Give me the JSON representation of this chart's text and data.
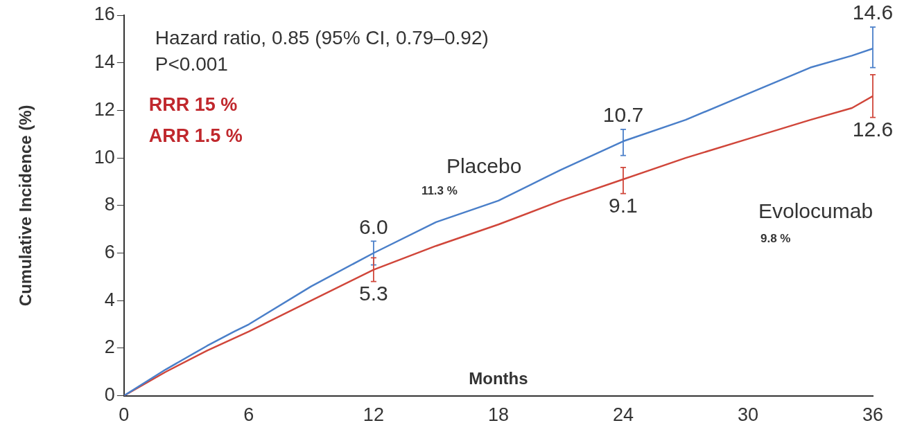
{
  "chart_data": {
    "type": "line",
    "xlabel": "Months",
    "ylabel": "Cumulative Incidence (%)",
    "xlim": [
      0,
      36
    ],
    "xticks": [
      0,
      6,
      12,
      18,
      24,
      30,
      36
    ],
    "ylim": [
      0,
      16
    ],
    "yticks": [
      0,
      2,
      4,
      6,
      8,
      10,
      12,
      14,
      16
    ],
    "grid": false,
    "legend": false,
    "marker": "none",
    "line_style": "solid",
    "annotations": [
      "Hazard ratio, 0.85 (95% CI, 0.79–0.92)",
      "P<0.001",
      "RRR 15 %",
      "ARR 1.5 %",
      "11.3 %",
      "9.8 %"
    ],
    "series": [
      {
        "name": "Placebo",
        "color": "#4a7fc9",
        "x": [
          0,
          2,
          4,
          5.3,
          6,
          9,
          12,
          15,
          18,
          21,
          24,
          27,
          30,
          33,
          35,
          36
        ],
        "values": [
          0,
          1.1,
          2.1,
          2.7,
          3.0,
          4.6,
          6.0,
          7.3,
          8.2,
          9.5,
          10.7,
          11.6,
          12.7,
          13.8,
          14.3,
          14.6
        ],
        "errors": [
          null,
          null,
          null,
          null,
          null,
          null,
          [
            5.5,
            6.5
          ],
          null,
          null,
          null,
          [
            10.1,
            11.2
          ],
          null,
          null,
          null,
          null,
          [
            13.8,
            15.5
          ]
        ],
        "value_labels": [
          null,
          null,
          null,
          null,
          null,
          null,
          "6.0",
          null,
          null,
          null,
          "10.7",
          null,
          null,
          null,
          null,
          "14.6"
        ]
      },
      {
        "name": "Evolocumab",
        "color": "#d0463a",
        "x": [
          0,
          2,
          4,
          6,
          9,
          12,
          15,
          18,
          21,
          24,
          27,
          30,
          33,
          35,
          36
        ],
        "values": [
          0,
          1.0,
          1.9,
          2.7,
          4.0,
          5.3,
          6.3,
          7.2,
          8.2,
          9.1,
          10.0,
          10.8,
          11.6,
          12.1,
          12.6
        ],
        "errors": [
          null,
          null,
          null,
          null,
          null,
          [
            4.8,
            5.8
          ],
          null,
          null,
          null,
          [
            8.5,
            9.6
          ],
          null,
          null,
          null,
          null,
          [
            11.7,
            13.5
          ]
        ],
        "value_labels": [
          null,
          null,
          null,
          null,
          null,
          "5.3",
          null,
          null,
          null,
          "9.1",
          null,
          null,
          null,
          null,
          "12.6"
        ]
      }
    ]
  }
}
